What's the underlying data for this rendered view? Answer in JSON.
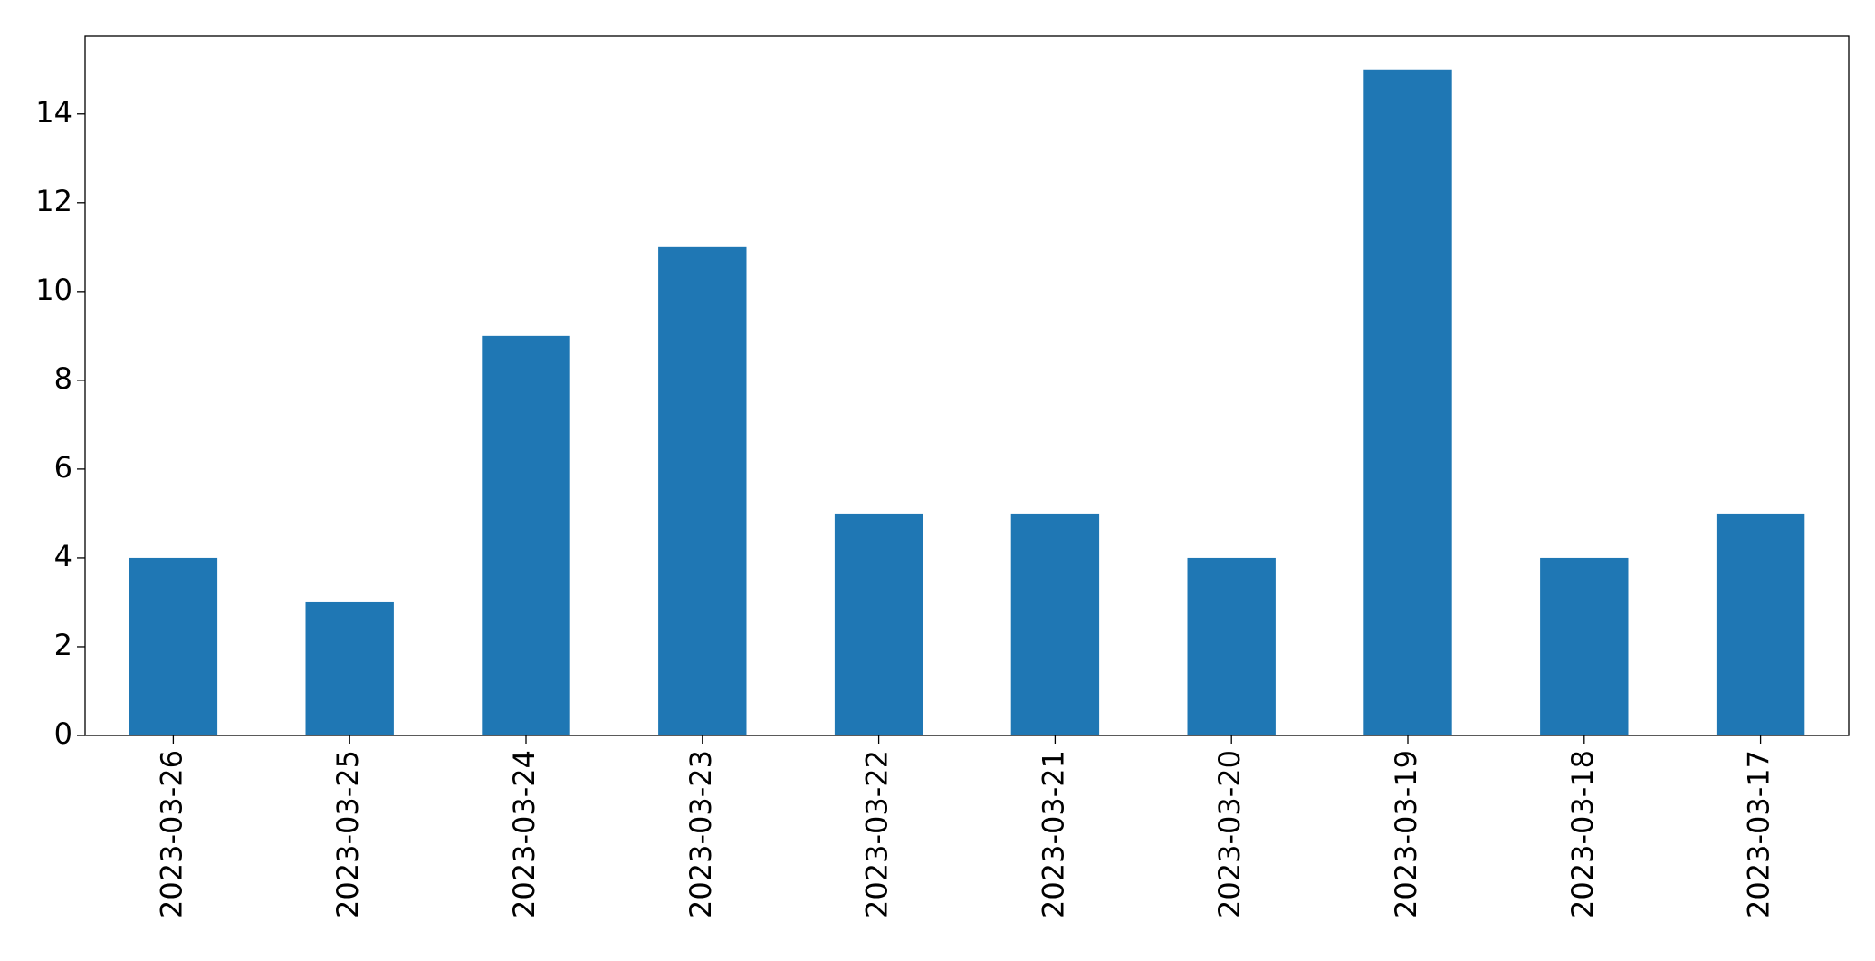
{
  "chart_data": {
    "type": "bar",
    "categories": [
      "2023-03-26",
      "2023-03-25",
      "2023-03-24",
      "2023-03-23",
      "2023-03-22",
      "2023-03-21",
      "2023-03-20",
      "2023-03-19",
      "2023-03-18",
      "2023-03-17"
    ],
    "values": [
      4,
      3,
      9,
      11,
      5,
      5,
      4,
      15,
      4,
      5
    ],
    "color": "#1f77b4",
    "ylim": [
      0,
      15.75
    ],
    "yticks": [
      0,
      2,
      4,
      6,
      8,
      10,
      12,
      14
    ],
    "grid": false
  }
}
